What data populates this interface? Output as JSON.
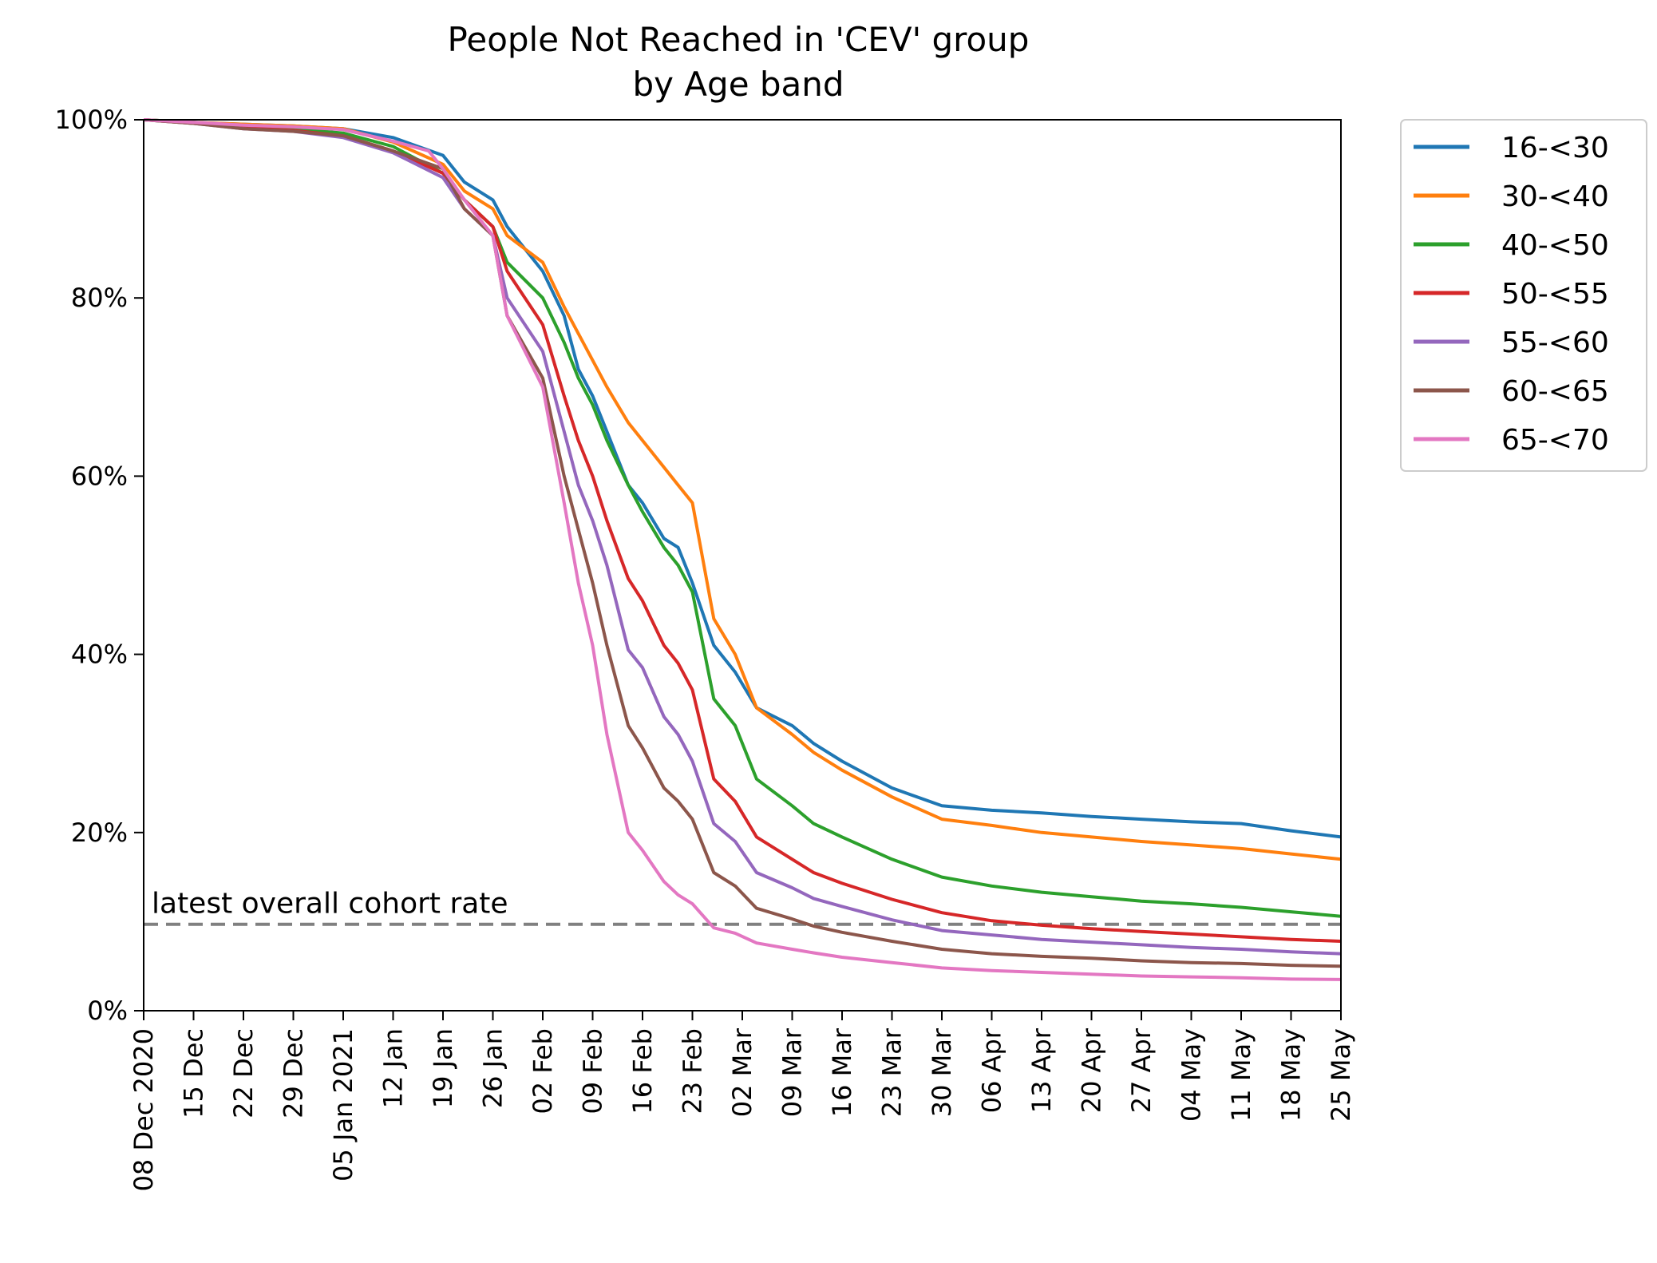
{
  "chart_data": {
    "type": "line",
    "title": "People Not Reached in 'CEV' group",
    "subtitle": "by Age band",
    "xlabel": "",
    "ylabel": "",
    "x_start": "2020-12-08",
    "x_end": "2021-05-25",
    "x_ticks": [
      "08 Dec 2020",
      "15 Dec",
      "22 Dec",
      "29 Dec",
      "05 Jan 2021",
      "12 Jan",
      "19 Jan",
      "26 Jan",
      "02 Feb",
      "09 Feb",
      "16 Feb",
      "23 Feb",
      "02 Mar",
      "09 Mar",
      "16 Mar",
      "23 Mar",
      "30 Mar",
      "06 Apr",
      "13 Apr",
      "20 Apr",
      "27 Apr",
      "04 May",
      "11 May",
      "18 May",
      "25 May"
    ],
    "y_ticks": [
      "0%",
      "20%",
      "40%",
      "60%",
      "80%",
      "100%"
    ],
    "ylim": [
      0,
      100
    ],
    "grid": false,
    "legend_position": "outside-right",
    "annotation": {
      "text": "latest overall cohort rate",
      "y": 9.7,
      "style": "dashed",
      "color": "#808080"
    },
    "series": [
      {
        "name": "16-<30",
        "color": "#1f77b4",
        "points": [
          [
            "2020-12-08",
            100
          ],
          [
            "2020-12-15",
            99.7
          ],
          [
            "2020-12-22",
            99.5
          ],
          [
            "2020-12-29",
            99.3
          ],
          [
            "2021-01-05",
            99
          ],
          [
            "2021-01-12",
            98
          ],
          [
            "2021-01-19",
            96
          ],
          [
            "2021-01-22",
            93
          ],
          [
            "2021-01-26",
            91
          ],
          [
            "2021-01-28",
            88
          ],
          [
            "2021-02-02",
            83
          ],
          [
            "2021-02-05",
            78
          ],
          [
            "2021-02-07",
            72
          ],
          [
            "2021-02-09",
            69
          ],
          [
            "2021-02-11",
            65
          ],
          [
            "2021-02-14",
            59
          ],
          [
            "2021-02-16",
            57
          ],
          [
            "2021-02-19",
            53
          ],
          [
            "2021-02-21",
            52
          ],
          [
            "2021-02-23",
            48
          ],
          [
            "2021-02-26",
            41
          ],
          [
            "2021-03-01",
            38
          ],
          [
            "2021-03-04",
            34
          ],
          [
            "2021-03-09",
            32
          ],
          [
            "2021-03-12",
            30
          ],
          [
            "2021-03-16",
            28
          ],
          [
            "2021-03-23",
            25
          ],
          [
            "2021-03-30",
            23
          ],
          [
            "2021-04-06",
            22.5
          ],
          [
            "2021-04-13",
            22.2
          ],
          [
            "2021-04-20",
            21.8
          ],
          [
            "2021-04-27",
            21.5
          ],
          [
            "2021-05-04",
            21.2
          ],
          [
            "2021-05-11",
            21
          ],
          [
            "2021-05-18",
            20.2
          ],
          [
            "2021-05-25",
            19.5
          ]
        ]
      },
      {
        "name": "30-<40",
        "color": "#ff7f0e",
        "points": [
          [
            "2020-12-08",
            100
          ],
          [
            "2020-12-15",
            99.7
          ],
          [
            "2020-12-22",
            99.5
          ],
          [
            "2020-12-29",
            99.3
          ],
          [
            "2021-01-05",
            99
          ],
          [
            "2021-01-12",
            97.5
          ],
          [
            "2021-01-19",
            95
          ],
          [
            "2021-01-22",
            92
          ],
          [
            "2021-01-26",
            90
          ],
          [
            "2021-01-28",
            87
          ],
          [
            "2021-02-02",
            84
          ],
          [
            "2021-02-05",
            79
          ],
          [
            "2021-02-07",
            76
          ],
          [
            "2021-02-09",
            73
          ],
          [
            "2021-02-11",
            70
          ],
          [
            "2021-02-14",
            66
          ],
          [
            "2021-02-16",
            64
          ],
          [
            "2021-02-19",
            61
          ],
          [
            "2021-02-21",
            59
          ],
          [
            "2021-02-23",
            57
          ],
          [
            "2021-02-26",
            44
          ],
          [
            "2021-03-01",
            40
          ],
          [
            "2021-03-04",
            34
          ],
          [
            "2021-03-09",
            31
          ],
          [
            "2021-03-12",
            29
          ],
          [
            "2021-03-16",
            27
          ],
          [
            "2021-03-23",
            24
          ],
          [
            "2021-03-30",
            21.5
          ],
          [
            "2021-04-06",
            20.8
          ],
          [
            "2021-04-13",
            20
          ],
          [
            "2021-04-20",
            19.5
          ],
          [
            "2021-04-27",
            19
          ],
          [
            "2021-05-04",
            18.6
          ],
          [
            "2021-05-11",
            18.2
          ],
          [
            "2021-05-18",
            17.6
          ],
          [
            "2021-05-25",
            17
          ]
        ]
      },
      {
        "name": "40-<50",
        "color": "#2ca02c",
        "points": [
          [
            "2020-12-08",
            100
          ],
          [
            "2020-12-15",
            99.7
          ],
          [
            "2020-12-22",
            99.3
          ],
          [
            "2020-12-29",
            99
          ],
          [
            "2021-01-05",
            98.5
          ],
          [
            "2021-01-12",
            97
          ],
          [
            "2021-01-19",
            94
          ],
          [
            "2021-01-22",
            91
          ],
          [
            "2021-01-26",
            88
          ],
          [
            "2021-01-28",
            84
          ],
          [
            "2021-02-02",
            80
          ],
          [
            "2021-02-05",
            75
          ],
          [
            "2021-02-07",
            71
          ],
          [
            "2021-02-09",
            68
          ],
          [
            "2021-02-11",
            64
          ],
          [
            "2021-02-14",
            59
          ],
          [
            "2021-02-16",
            56
          ],
          [
            "2021-02-19",
            52
          ],
          [
            "2021-02-21",
            50
          ],
          [
            "2021-02-23",
            47
          ],
          [
            "2021-02-26",
            35
          ],
          [
            "2021-03-01",
            32
          ],
          [
            "2021-03-04",
            26
          ],
          [
            "2021-03-09",
            23
          ],
          [
            "2021-03-12",
            21
          ],
          [
            "2021-03-16",
            19.5
          ],
          [
            "2021-03-23",
            17
          ],
          [
            "2021-03-30",
            15
          ],
          [
            "2021-04-06",
            14
          ],
          [
            "2021-04-13",
            13.3
          ],
          [
            "2021-04-20",
            12.8
          ],
          [
            "2021-04-27",
            12.3
          ],
          [
            "2021-05-04",
            12
          ],
          [
            "2021-05-11",
            11.6
          ],
          [
            "2021-05-18",
            11.1
          ],
          [
            "2021-05-25",
            10.6
          ]
        ]
      },
      {
        "name": "50-<55",
        "color": "#d62728",
        "points": [
          [
            "2020-12-08",
            100
          ],
          [
            "2020-12-15",
            99.6
          ],
          [
            "2020-12-22",
            99.1
          ],
          [
            "2020-12-29",
            98.8
          ],
          [
            "2021-01-05",
            98.2
          ],
          [
            "2021-01-12",
            96.5
          ],
          [
            "2021-01-19",
            94
          ],
          [
            "2021-01-22",
            91
          ],
          [
            "2021-01-26",
            88
          ],
          [
            "2021-01-28",
            83
          ],
          [
            "2021-02-02",
            77
          ],
          [
            "2021-02-05",
            69
          ],
          [
            "2021-02-07",
            64
          ],
          [
            "2021-02-09",
            60
          ],
          [
            "2021-02-11",
            55
          ],
          [
            "2021-02-14",
            48.5
          ],
          [
            "2021-02-16",
            46
          ],
          [
            "2021-02-19",
            41
          ],
          [
            "2021-02-21",
            39
          ],
          [
            "2021-02-23",
            36
          ],
          [
            "2021-02-26",
            26
          ],
          [
            "2021-03-01",
            23.5
          ],
          [
            "2021-03-04",
            19.5
          ],
          [
            "2021-03-09",
            17
          ],
          [
            "2021-03-12",
            15.5
          ],
          [
            "2021-03-16",
            14.3
          ],
          [
            "2021-03-23",
            12.5
          ],
          [
            "2021-03-30",
            11
          ],
          [
            "2021-04-06",
            10.1
          ],
          [
            "2021-04-13",
            9.6
          ],
          [
            "2021-04-20",
            9.2
          ],
          [
            "2021-04-27",
            8.9
          ],
          [
            "2021-05-04",
            8.6
          ],
          [
            "2021-05-11",
            8.3
          ],
          [
            "2021-05-18",
            8
          ],
          [
            "2021-05-25",
            7.8
          ]
        ]
      },
      {
        "name": "55-<60",
        "color": "#9467bd",
        "points": [
          [
            "2020-12-08",
            100
          ],
          [
            "2020-12-15",
            99.6
          ],
          [
            "2020-12-22",
            99
          ],
          [
            "2020-12-29",
            98.7
          ],
          [
            "2021-01-05",
            98
          ],
          [
            "2021-01-12",
            96.3
          ],
          [
            "2021-01-19",
            93.5
          ],
          [
            "2021-01-22",
            90
          ],
          [
            "2021-01-26",
            87
          ],
          [
            "2021-01-28",
            80
          ],
          [
            "2021-02-02",
            74
          ],
          [
            "2021-02-05",
            65
          ],
          [
            "2021-02-07",
            59
          ],
          [
            "2021-02-09",
            55
          ],
          [
            "2021-02-11",
            50
          ],
          [
            "2021-02-14",
            40.5
          ],
          [
            "2021-02-16",
            38.5
          ],
          [
            "2021-02-19",
            33
          ],
          [
            "2021-02-21",
            31
          ],
          [
            "2021-02-23",
            28
          ],
          [
            "2021-02-26",
            21
          ],
          [
            "2021-03-01",
            19
          ],
          [
            "2021-03-04",
            15.5
          ],
          [
            "2021-03-09",
            13.8
          ],
          [
            "2021-03-12",
            12.6
          ],
          [
            "2021-03-16",
            11.7
          ],
          [
            "2021-03-23",
            10.2
          ],
          [
            "2021-03-30",
            9
          ],
          [
            "2021-04-06",
            8.5
          ],
          [
            "2021-04-13",
            8
          ],
          [
            "2021-04-20",
            7.7
          ],
          [
            "2021-04-27",
            7.4
          ],
          [
            "2021-05-04",
            7.1
          ],
          [
            "2021-05-11",
            6.9
          ],
          [
            "2021-05-18",
            6.6
          ],
          [
            "2021-05-25",
            6.4
          ]
        ]
      },
      {
        "name": "60-<65",
        "color": "#8c564b",
        "points": [
          [
            "2020-12-08",
            100
          ],
          [
            "2020-12-15",
            99.6
          ],
          [
            "2020-12-22",
            99
          ],
          [
            "2020-12-29",
            98.7
          ],
          [
            "2021-01-05",
            98.2
          ],
          [
            "2021-01-12",
            96.5
          ],
          [
            "2021-01-19",
            94.5
          ],
          [
            "2021-01-22",
            90
          ],
          [
            "2021-01-26",
            87
          ],
          [
            "2021-01-28",
            78
          ],
          [
            "2021-02-02",
            71
          ],
          [
            "2021-02-05",
            60
          ],
          [
            "2021-02-07",
            54
          ],
          [
            "2021-02-09",
            48
          ],
          [
            "2021-02-11",
            41
          ],
          [
            "2021-02-14",
            32
          ],
          [
            "2021-02-16",
            29.5
          ],
          [
            "2021-02-19",
            25
          ],
          [
            "2021-02-21",
            23.5
          ],
          [
            "2021-02-23",
            21.5
          ],
          [
            "2021-02-26",
            15.5
          ],
          [
            "2021-03-01",
            14
          ],
          [
            "2021-03-04",
            11.5
          ],
          [
            "2021-03-09",
            10.3
          ],
          [
            "2021-03-12",
            9.5
          ],
          [
            "2021-03-16",
            8.8
          ],
          [
            "2021-03-23",
            7.8
          ],
          [
            "2021-03-30",
            6.9
          ],
          [
            "2021-04-06",
            6.4
          ],
          [
            "2021-04-13",
            6.1
          ],
          [
            "2021-04-20",
            5.9
          ],
          [
            "2021-04-27",
            5.6
          ],
          [
            "2021-05-04",
            5.4
          ],
          [
            "2021-05-11",
            5.3
          ],
          [
            "2021-05-18",
            5.1
          ],
          [
            "2021-05-25",
            5
          ]
        ]
      },
      {
        "name": "65-<70",
        "color": "#e377c2",
        "points": [
          [
            "2020-12-08",
            100
          ],
          [
            "2020-12-15",
            99.7
          ],
          [
            "2020-12-22",
            99.4
          ],
          [
            "2020-12-29",
            99.2
          ],
          [
            "2021-01-05",
            98.9
          ],
          [
            "2021-01-12",
            97.6
          ],
          [
            "2021-01-17",
            96.5
          ],
          [
            "2021-01-19",
            94.5
          ],
          [
            "2021-01-22",
            91
          ],
          [
            "2021-01-26",
            87
          ],
          [
            "2021-01-28",
            78
          ],
          [
            "2021-02-02",
            70
          ],
          [
            "2021-02-05",
            57
          ],
          [
            "2021-02-07",
            48
          ],
          [
            "2021-02-09",
            41
          ],
          [
            "2021-02-11",
            31
          ],
          [
            "2021-02-14",
            20
          ],
          [
            "2021-02-16",
            18
          ],
          [
            "2021-02-19",
            14.5
          ],
          [
            "2021-02-21",
            13
          ],
          [
            "2021-02-23",
            12
          ],
          [
            "2021-02-26",
            9.3
          ],
          [
            "2021-03-01",
            8.7
          ],
          [
            "2021-03-04",
            7.6
          ],
          [
            "2021-03-09",
            6.9
          ],
          [
            "2021-03-12",
            6.5
          ],
          [
            "2021-03-16",
            6
          ],
          [
            "2021-03-23",
            5.4
          ],
          [
            "2021-03-30",
            4.8
          ],
          [
            "2021-04-06",
            4.5
          ],
          [
            "2021-04-13",
            4.3
          ],
          [
            "2021-04-20",
            4.1
          ],
          [
            "2021-04-27",
            3.9
          ],
          [
            "2021-05-04",
            3.8
          ],
          [
            "2021-05-11",
            3.7
          ],
          [
            "2021-05-18",
            3.55
          ],
          [
            "2021-05-25",
            3.5
          ]
        ]
      }
    ]
  }
}
